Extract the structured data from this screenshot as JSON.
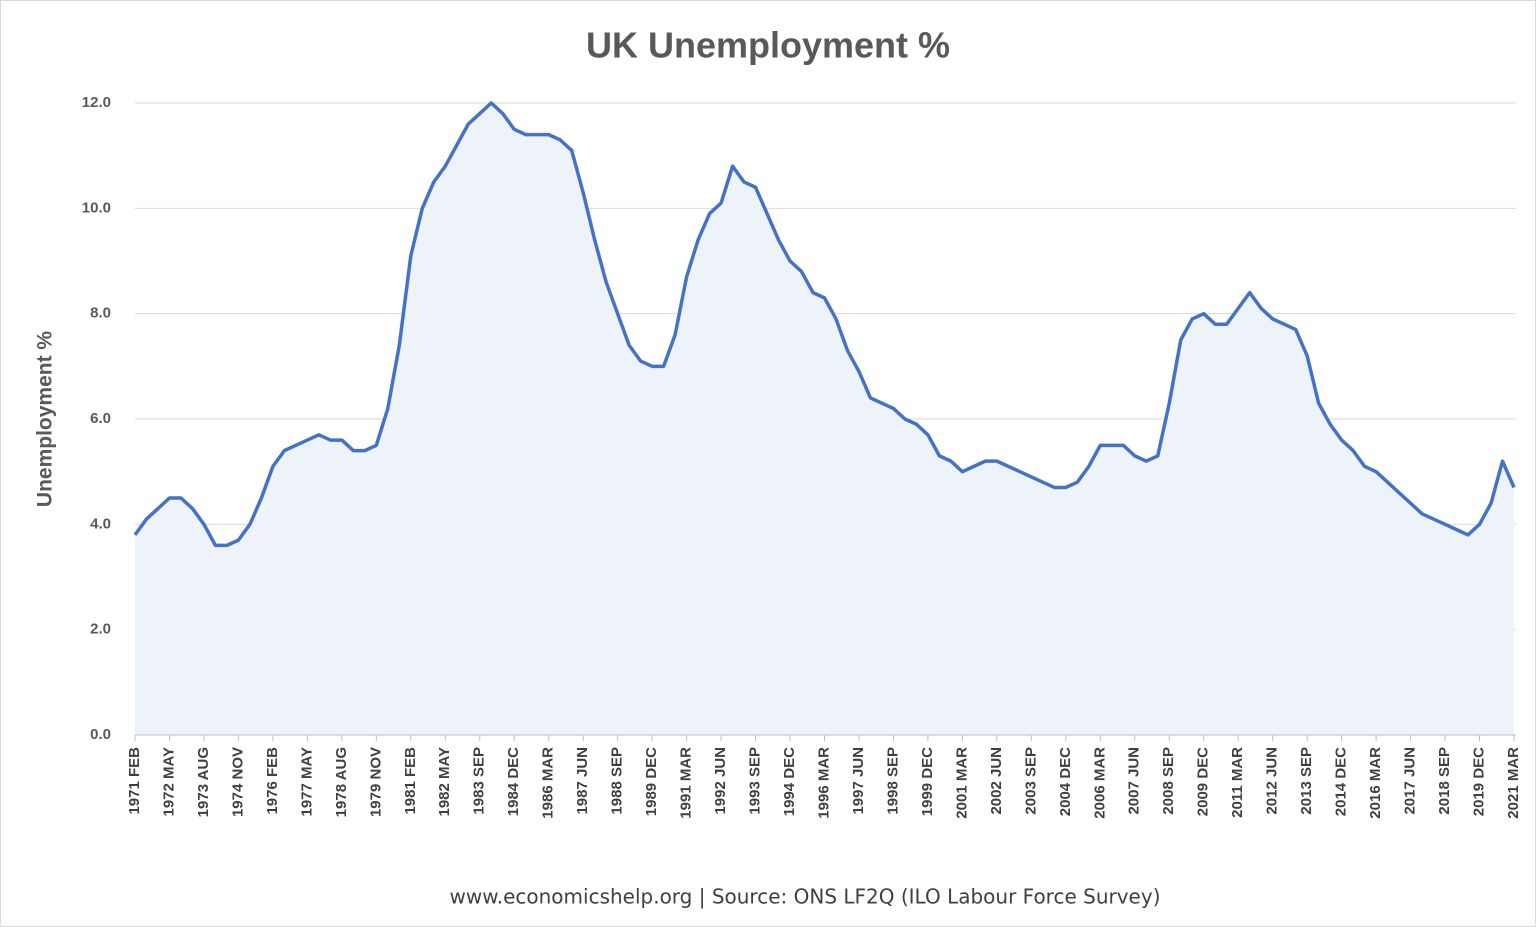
{
  "chart_data": {
    "type": "line",
    "title": "UK Unemployment %",
    "y_label": "Unemployment %",
    "annotation": "www.economicshelp.org  | Source:  ONS LF2Q (ILO Labour Force Survey)",
    "color": "#4472c4",
    "fill": "#eef3fa",
    "grid": true,
    "ylim": [
      0,
      12
    ],
    "yticks": [
      {
        "value": 0,
        "label": "0.0"
      },
      {
        "value": 2,
        "label": "2.0"
      },
      {
        "value": 4,
        "label": "4.0"
      },
      {
        "value": 6,
        "label": "6.0"
      },
      {
        "value": 8,
        "label": "8.0"
      },
      {
        "value": 10,
        "label": "10.0"
      },
      {
        "value": 12,
        "label": "12.0"
      }
    ],
    "categories": [
      "1971 FEB",
      null,
      null,
      "1972 MAY",
      null,
      null,
      "1973 AUG",
      null,
      null,
      "1974 NOV",
      null,
      null,
      "1976 FEB",
      null,
      null,
      "1977 MAY",
      null,
      null,
      "1978 AUG",
      null,
      null,
      "1979 NOV",
      null,
      null,
      "1981 FEB",
      null,
      null,
      "1982 MAY",
      null,
      null,
      "1983 SEP",
      null,
      null,
      "1984 DEC",
      null,
      null,
      "1986 MAR",
      null,
      null,
      "1987 JUN",
      null,
      null,
      "1988 SEP",
      null,
      null,
      "1989 DEC",
      null,
      null,
      "1991 MAR",
      null,
      null,
      "1992 JUN",
      null,
      null,
      "1993 SEP",
      null,
      null,
      "1994 DEC",
      null,
      null,
      "1996 MAR",
      null,
      null,
      "1997 JUN",
      null,
      null,
      "1998 SEP",
      null,
      null,
      "1999 DEC",
      null,
      null,
      "2001 MAR",
      null,
      null,
      "2002 JUN",
      null,
      null,
      "2003 SEP",
      null,
      null,
      "2004 DEC",
      null,
      null,
      "2006 MAR",
      null,
      null,
      "2007 JUN",
      null,
      null,
      "2008 SEP",
      null,
      null,
      "2009 DEC",
      null,
      null,
      "2011 MAR",
      null,
      null,
      "2012 JUN",
      null,
      null,
      "2013 SEP",
      null,
      null,
      "2014 DEC",
      null,
      null,
      "2016 MAR",
      null,
      null,
      "2017 JUN",
      null,
      null,
      "2018 SEP",
      null,
      null,
      "2019 DEC",
      null,
      null,
      "2021 MAR"
    ],
    "values": [
      3.8,
      4.1,
      4.3,
      4.5,
      4.5,
      4.3,
      4.0,
      3.6,
      3.6,
      3.7,
      4.0,
      4.5,
      5.1,
      5.4,
      5.5,
      5.6,
      5.7,
      5.6,
      5.6,
      5.4,
      5.4,
      5.5,
      6.2,
      7.4,
      9.1,
      10.0,
      10.5,
      10.8,
      11.2,
      11.6,
      11.8,
      12.0,
      11.8,
      11.5,
      11.4,
      11.4,
      11.4,
      11.3,
      11.1,
      10.3,
      9.4,
      8.6,
      8.0,
      7.4,
      7.1,
      7.0,
      7.0,
      7.6,
      8.7,
      9.4,
      9.9,
      10.1,
      10.8,
      10.5,
      10.4,
      9.9,
      9.4,
      9.0,
      8.8,
      8.4,
      8.3,
      7.9,
      7.3,
      6.9,
      6.4,
      6.3,
      6.2,
      6.0,
      5.9,
      5.7,
      5.3,
      5.2,
      5.0,
      5.1,
      5.2,
      5.2,
      5.1,
      5.0,
      4.9,
      4.8,
      4.7,
      4.7,
      4.8,
      5.1,
      5.5,
      5.5,
      5.5,
      5.3,
      5.2,
      5.3,
      6.3,
      7.5,
      7.9,
      8.0,
      7.8,
      7.8,
      8.1,
      8.4,
      8.1,
      7.9,
      7.8,
      7.7,
      7.2,
      6.3,
      5.9,
      5.6,
      5.4,
      5.1,
      5.0,
      4.8,
      4.6,
      4.4,
      4.2,
      4.1,
      4.0,
      3.9,
      3.8,
      4.0,
      4.4,
      5.2,
      4.7
    ]
  }
}
